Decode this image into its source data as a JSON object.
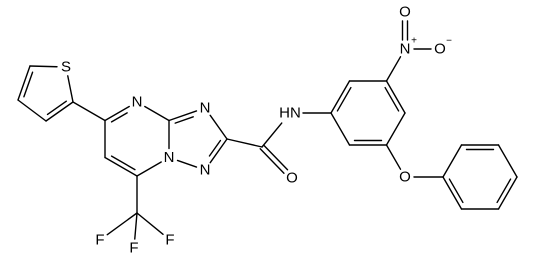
{
  "atoms": [
    {
      "label": "S"
    },
    {
      "label": "N"
    },
    {
      "label": "N"
    },
    {
      "label": "N"
    },
    {
      "label": "N"
    },
    {
      "label": "O"
    },
    {
      "label": "HN"
    },
    {
      "label": "N",
      "charge": "+"
    },
    {
      "label": "O"
    },
    {
      "label": "O",
      "charge": "−"
    },
    {
      "label": "O"
    },
    {
      "label": "F"
    },
    {
      "label": "F"
    },
    {
      "label": "F"
    }
  ]
}
